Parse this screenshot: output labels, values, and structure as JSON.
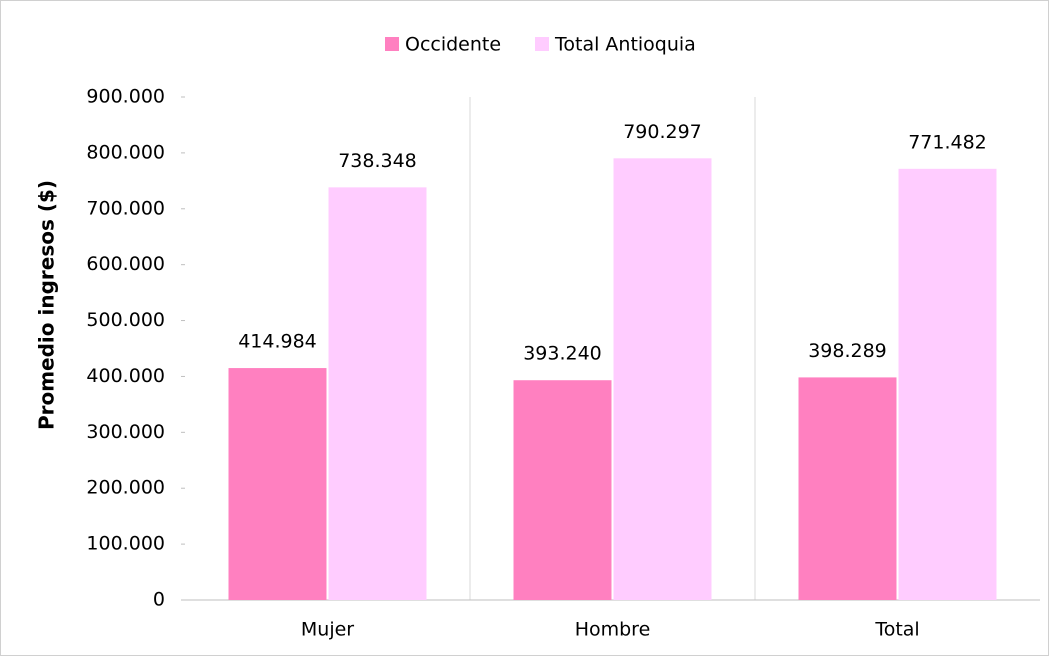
{
  "chart_data": {
    "type": "bar",
    "y_label": "Promedio ingresos ($)",
    "categories": [
      "Mujer",
      "Hombre",
      "Total"
    ],
    "series": [
      {
        "name": "Occidente",
        "color": "#ff80c0",
        "values": [
          414984,
          393240,
          398289
        ],
        "value_labels": [
          "414.984",
          "393.240",
          "398.289"
        ]
      },
      {
        "name": "Total Antioquia",
        "color": "#ffccff",
        "values": [
          738348,
          790297,
          771482
        ],
        "value_labels": [
          "738.348",
          "790.297",
          "771.482"
        ]
      }
    ],
    "ylim": [
      0,
      900000
    ],
    "yticks": [
      0,
      {
        "value": 100000,
        "label": "100.000"
      },
      {
        "value": 200000,
        "label": "200.000"
      },
      {
        "value": 300000,
        "label": "300.000"
      },
      {
        "value": 400000,
        "label": "400.000"
      },
      {
        "value": 500000,
        "label": "500.000"
      },
      {
        "value": 600000,
        "label": "600.000"
      },
      {
        "value": 700000,
        "label": "700.000"
      },
      {
        "value": 800000,
        "label": "800.000"
      },
      {
        "value": 900000,
        "label": "900.000"
      }
    ],
    "legend": "top"
  }
}
